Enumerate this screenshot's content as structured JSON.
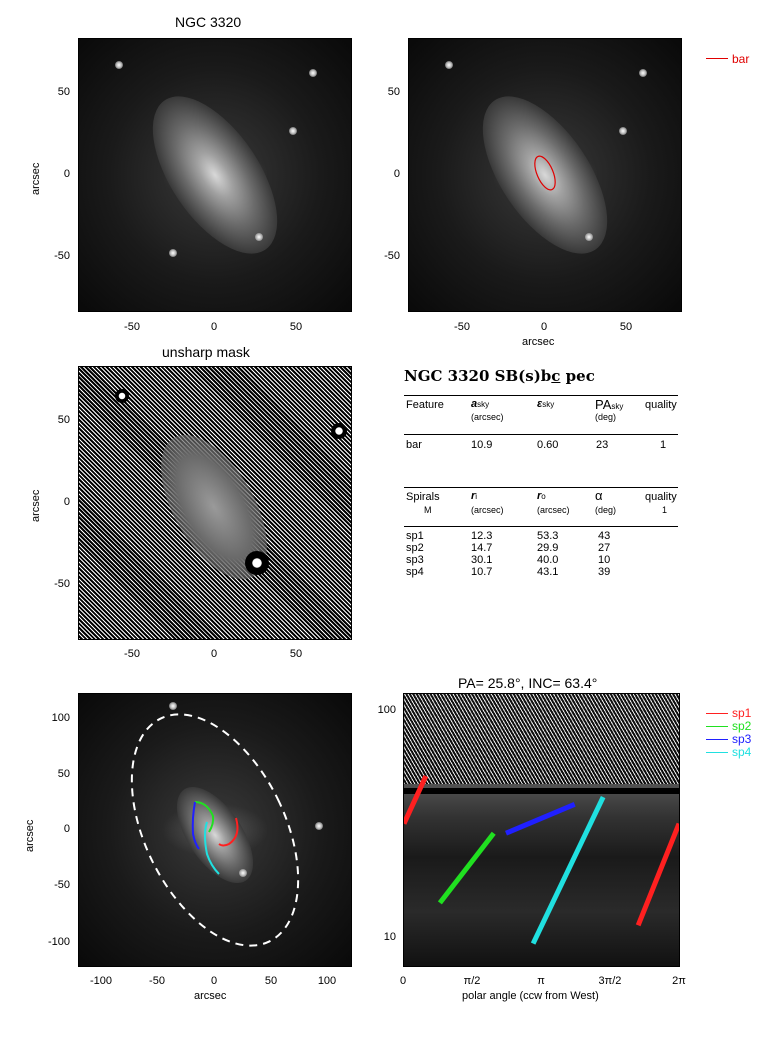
{
  "panels": {
    "top_left": {
      "title": "NGC 3320",
      "ylabel": "arcsec",
      "yticks": [
        "50",
        "0",
        "-50"
      ],
      "xticks": [
        "-50",
        "0",
        "50"
      ]
    },
    "top_right": {
      "xlabel": "arcsec",
      "yticks": [
        "50",
        "0",
        "-50"
      ],
      "xticks": [
        "-50",
        "0",
        "50"
      ],
      "legend": "bar",
      "legend_color": "#e00000"
    },
    "mid_left": {
      "title": "unsharp mask",
      "ylabel": "arcsec",
      "yticks": [
        "50",
        "0",
        "-50"
      ],
      "xticks": [
        "-50",
        "0",
        "50"
      ]
    },
    "bottom_left": {
      "ylabel": "arcsec",
      "xlabel": "arcsec",
      "yticks": [
        "100",
        "50",
        "0",
        "-50",
        "-100"
      ],
      "xticks": [
        "-100",
        "-50",
        "0",
        "50",
        "100"
      ]
    }
  },
  "table": {
    "heading": "NGC 3320  SB(s)bc pec",
    "heading_main": "NGC 3320  SB(s)b",
    "heading_underlined": "c",
    "heading_tail": " pec",
    "bar_header": {
      "feature": "Feature",
      "a": "a",
      "a_sub": "sky",
      "a_unit": "(arcsec)",
      "eps": "ε",
      "eps_sub": "sky",
      "pa": "PA",
      "pa_sub": "sky",
      "pa_unit": "(deg)",
      "quality": "quality"
    },
    "bar_row": {
      "feature": "bar",
      "a": "10.9",
      "eps": "0.60",
      "pa": "23",
      "quality": "1"
    },
    "spiral_header": {
      "spirals": "Spirals",
      "m": "M",
      "ri": "r",
      "ri_sub": "i",
      "ri_unit": "(arcsec)",
      "ro": "r",
      "ro_sub": "o",
      "ro_unit": "(arcsec)",
      "alpha": "α",
      "alpha_unit": "(deg)",
      "quality": "quality",
      "quality_val": "1"
    },
    "spiral_rows": [
      {
        "name": "sp1",
        "ri": "12.3",
        "ro": "53.3",
        "alpha": "43"
      },
      {
        "name": "sp2",
        "ri": "14.7",
        "ro": "29.9",
        "alpha": "27"
      },
      {
        "name": "sp3",
        "ri": "30.1",
        "ro": "40.0",
        "alpha": "10"
      },
      {
        "name": "sp4",
        "ri": "10.7",
        "ro": "43.1",
        "alpha": "39"
      }
    ]
  },
  "polar_plot": {
    "title": "PA= 25.8°, INC= 63.4°",
    "xlabel": "polar angle (ccw from West)",
    "xticks": [
      "0",
      "π/2",
      "π",
      "3π/2",
      "2π"
    ],
    "yticks": [
      "100",
      "10"
    ]
  },
  "spiral_legend": [
    {
      "name": "sp1",
      "color": "#ff2020"
    },
    {
      "name": "sp2",
      "color": "#20e020"
    },
    {
      "name": "sp3",
      "color": "#2020ff"
    },
    {
      "name": "sp4",
      "color": "#20e0e0"
    }
  ],
  "chart_data": {
    "type": "line",
    "title": "PA= 25.8°, INC= 63.4°",
    "xlabel": "polar angle (ccw from West)",
    "ylabel": "",
    "xlim": [
      0,
      6.283
    ],
    "ylim": [
      8,
      120
    ],
    "yscale": "log",
    "series": [
      {
        "name": "sp1",
        "color": "#ff2020",
        "segments": [
          [
            [
              0.0,
              33
            ],
            [
              0.5,
              53
            ]
          ],
          [
            [
              5.35,
              12
            ],
            [
              6.283,
              33
            ]
          ]
        ]
      },
      {
        "name": "sp2",
        "color": "#20e020",
        "segments": [
          [
            [
              0.82,
              15
            ],
            [
              2.05,
              30
            ]
          ]
        ]
      },
      {
        "name": "sp3",
        "color": "#2020ff",
        "segments": [
          [
            [
              2.33,
              30
            ],
            [
              3.9,
              40
            ]
          ]
        ]
      },
      {
        "name": "sp4",
        "color": "#20e0e0",
        "segments": [
          [
            [
              2.95,
              10
            ],
            [
              4.55,
              43
            ]
          ]
        ]
      }
    ]
  }
}
